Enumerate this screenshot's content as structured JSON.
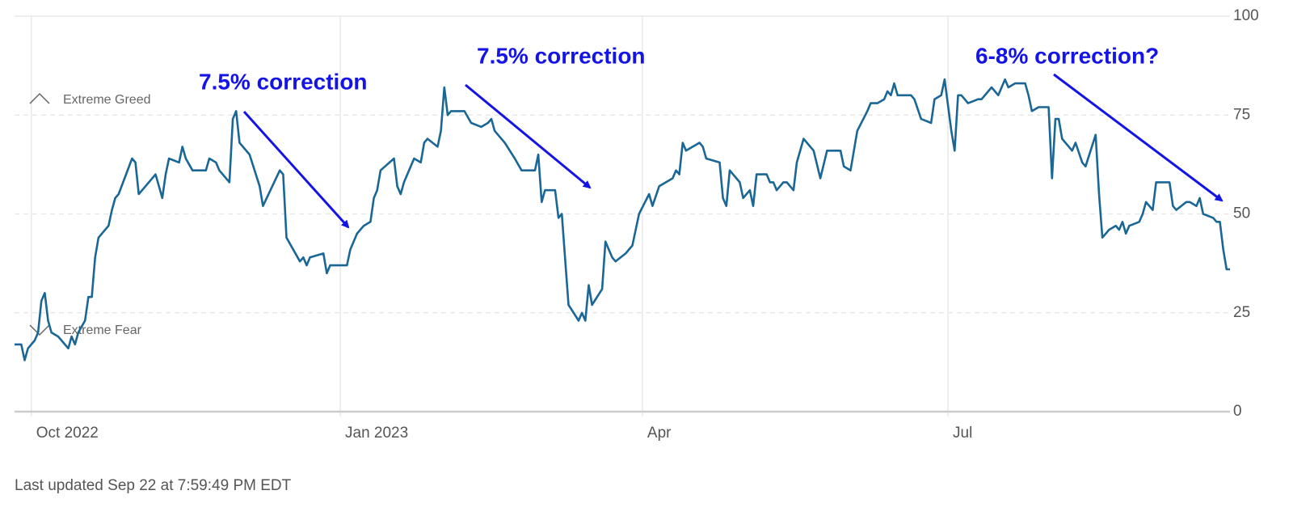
{
  "chart_data": {
    "type": "line",
    "x": [
      -5,
      -4,
      -3,
      -2,
      -1,
      1,
      2,
      3,
      4,
      5,
      6,
      8,
      10,
      11,
      12,
      13,
      14,
      16,
      17,
      18,
      19,
      20,
      23,
      24,
      25,
      26,
      30,
      31,
      32,
      33,
      37,
      38,
      39,
      40,
      41,
      44,
      45,
      46,
      48,
      50,
      52,
      53,
      55,
      56,
      59,
      60,
      61,
      62,
      65,
      68,
      69,
      74,
      75,
      76,
      80,
      81,
      82,
      83,
      87,
      88,
      89,
      90,
      94,
      95,
      97,
      99,
      101,
      102,
      103,
      104,
      108,
      109,
      110,
      111,
      114,
      116,
      117,
      118,
      121,
      122,
      123,
      124,
      125,
      128,
      129,
      131,
      134,
      136,
      137,
      138,
      141,
      144,
      146,
      150,
      151,
      152,
      153,
      156,
      157,
      158,
      160,
      163,
      164,
      165,
      166,
      167,
      170,
      171,
      173,
      174,
      177,
      178,
      179,
      181,
      184,
      185,
      187,
      191,
      192,
      193,
      194,
      195,
      197,
      199,
      200,
      201,
      205,
      206,
      207,
      208,
      211,
      212,
      214,
      215,
      216,
      219,
      220,
      221,
      222,
      224,
      225,
      227,
      228,
      230,
      233,
      235,
      237,
      241,
      242,
      244,
      246,
      249,
      250,
      252,
      254,
      255,
      256,
      257,
      258,
      262,
      263,
      265,
      268,
      269,
      271,
      272,
      274,
      275,
      276,
      277,
      279,
      282,
      283,
      285,
      286,
      288,
      290,
      291,
      293,
      296,
      297,
      298,
      300,
      303,
      304,
      305,
      306,
      307,
      310,
      311,
      313,
      314,
      317,
      318,
      319,
      321,
      323,
      324,
      325,
      326,
      327,
      330,
      331,
      332,
      334,
      335,
      339,
      340,
      341,
      344,
      345,
      347,
      348,
      349,
      352,
      353,
      354,
      355,
      356,
      357
    ],
    "values": [
      17,
      17,
      17,
      13,
      16,
      18,
      20,
      28,
      30,
      23,
      20,
      19,
      17,
      16,
      19,
      17,
      20,
      23,
      29,
      29,
      39,
      44,
      47,
      51,
      54,
      55,
      64,
      63,
      55,
      56,
      60,
      57,
      54,
      60,
      64,
      63,
      67,
      64,
      61,
      61,
      61,
      64,
      63,
      61,
      58,
      74,
      76,
      68,
      65,
      57,
      52,
      61,
      60,
      44,
      38,
      39,
      37,
      39,
      40,
      35,
      37,
      37,
      37,
      41,
      45,
      47,
      48,
      54,
      56,
      61,
      64,
      57,
      55,
      58,
      64,
      63,
      68,
      69,
      67,
      71,
      82,
      75,
      76,
      76,
      76,
      73,
      72,
      73,
      74,
      71,
      68,
      64,
      61,
      61,
      65,
      53,
      56,
      56,
      49,
      50,
      27,
      23,
      25,
      23,
      32,
      27,
      31,
      43,
      39,
      38,
      40,
      41,
      42,
      50,
      55,
      52,
      57,
      59,
      61,
      60,
      68,
      66,
      67,
      68,
      67,
      64,
      63,
      54,
      52,
      61,
      58,
      54,
      56,
      52,
      60,
      60,
      58,
      58,
      56,
      58,
      58,
      56,
      63,
      69,
      66,
      59,
      66,
      66,
      62,
      61,
      71,
      76,
      78,
      78,
      79,
      81,
      80,
      83,
      80,
      80,
      79,
      74,
      73,
      79,
      80,
      84,
      71,
      66,
      80,
      80,
      78,
      79,
      79,
      81,
      82,
      80,
      84,
      82,
      83,
      83,
      80,
      76,
      77,
      77,
      59,
      74,
      74,
      69,
      66,
      68,
      63,
      62,
      70,
      55,
      44,
      46,
      47,
      46,
      48,
      45,
      47,
      48,
      50,
      53,
      51,
      58,
      58,
      52,
      51,
      53,
      53,
      52,
      54,
      50,
      49,
      48,
      48,
      41,
      36,
      36
    ],
    "color": "#1a6796",
    "xlim": [
      -5,
      357
    ],
    "xticks": [
      {
        "value": 0,
        "label": "Oct 2022"
      },
      {
        "value": 92,
        "label": "Jan 2023"
      },
      {
        "value": 182,
        "label": "Apr"
      },
      {
        "value": 273,
        "label": "Jul"
      }
    ],
    "ylim": [
      0,
      100
    ],
    "yticks": [
      0,
      25,
      50,
      75,
      100
    ],
    "grid": true,
    "annotations": [
      "7.5% correction",
      "7.5% correction",
      "6-8% correction?"
    ],
    "zones": [
      "Extreme Greed",
      "Extreme Fear"
    ],
    "footer": "Last updated Sep 22 at 7:59:49 PM EDT"
  }
}
